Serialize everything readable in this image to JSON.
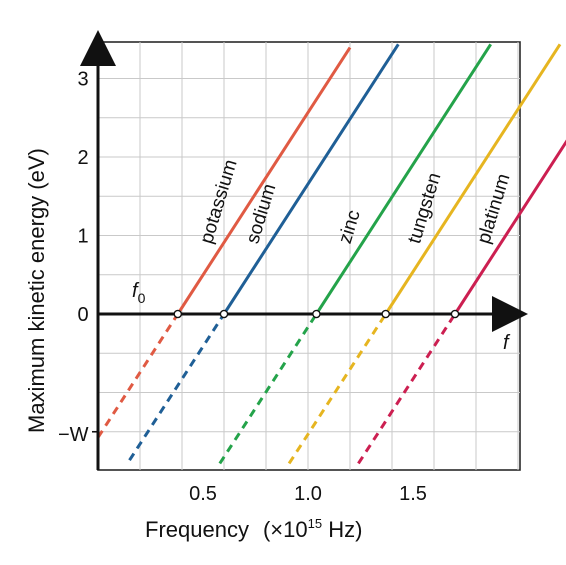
{
  "chart_data": {
    "type": "line",
    "xlabel": "Frequency",
    "xlabel_unit_prefix": "(×10",
    "xlabel_unit_exp": "15",
    "xlabel_unit_suffix": " Hz)",
    "ylabel": "Maximum kinetic energy (eV)",
    "x_tick_labels": [
      "0.5",
      "1.0",
      "1.5"
    ],
    "x_ticks": [
      0.5,
      1.0,
      1.5
    ],
    "y_tick_labels": [
      "0",
      "1",
      "2",
      "3"
    ],
    "y_ticks": [
      0,
      1,
      2,
      3
    ],
    "y_w_label": "−W",
    "x_axis_symbol": "f",
    "f0_symbol": "f",
    "f0_subscript": "0",
    "xlim": [
      0.0,
      2.6
    ],
    "ylim": [
      -2.0,
      3.4
    ],
    "grid": true,
    "solid_above_zero": true,
    "dashed_below_zero": true,
    "slope_ev_per_1e15hz": 4.14,
    "series": [
      {
        "name": "potassium",
        "color": "#e05a43",
        "f0": 0.38,
        "x_start": 0.0,
        "x_end": 1.2
      },
      {
        "name": "sodium",
        "color": "#1f5f96",
        "f0": 0.6,
        "x_start": 0.15,
        "x_end": 1.43
      },
      {
        "name": "zinc",
        "color": "#24a34a",
        "f0": 1.04,
        "x_start": 0.58,
        "x_end": 1.87
      },
      {
        "name": "tungsten",
        "color": "#e6b520",
        "f0": 1.37,
        "x_start": 0.91,
        "x_end": 2.2
      },
      {
        "name": "platinum",
        "color": "#cc1f51",
        "f0": 1.7,
        "x_start": 1.24,
        "x_end": 2.5
      }
    ]
  }
}
